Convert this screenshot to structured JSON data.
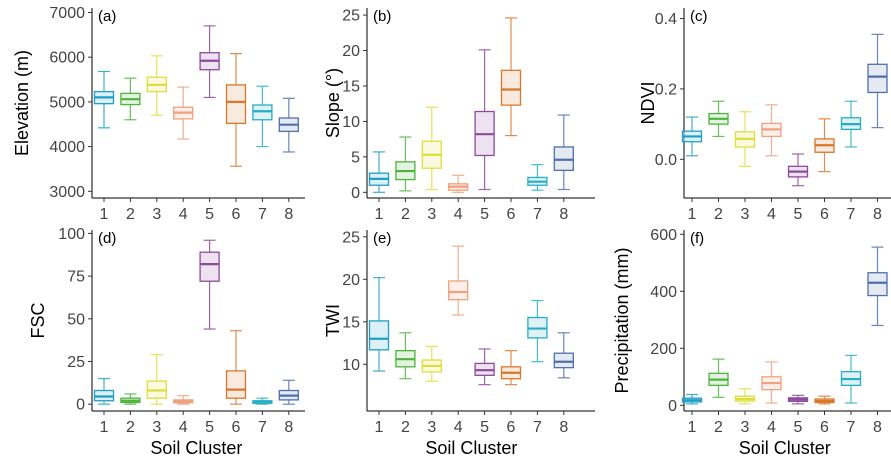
{
  "colors": [
    "#1f9ec9",
    "#4db33d",
    "#dede3b",
    "#f0a07c",
    "#8e4a9c",
    "#d9772b",
    "#26aec5",
    "#4f70ad"
  ],
  "chart_data": [
    {
      "type": "boxplot",
      "tag": "(a)",
      "xlabel": "",
      "ylabel": "Elevation (m)",
      "ylim": [
        2850,
        7100
      ],
      "yticks": [
        3000,
        4000,
        5000,
        6000,
        7000
      ],
      "categories": [
        "1",
        "2",
        "3",
        "4",
        "5",
        "6",
        "7",
        "8"
      ],
      "boxes": [
        {
          "min": 4420,
          "q1": 4960,
          "median": 5100,
          "q3": 5230,
          "max": 5680
        },
        {
          "min": 4600,
          "q1": 4940,
          "median": 5060,
          "q3": 5190,
          "max": 5530
        },
        {
          "min": 4700,
          "q1": 5230,
          "median": 5380,
          "q3": 5550,
          "max": 6030
        },
        {
          "min": 4170,
          "q1": 4620,
          "median": 4760,
          "q3": 4880,
          "max": 5330
        },
        {
          "min": 5100,
          "q1": 5720,
          "median": 5920,
          "q3": 6100,
          "max": 6700
        },
        {
          "min": 3560,
          "q1": 4520,
          "median": 5000,
          "q3": 5380,
          "max": 6080
        },
        {
          "min": 4000,
          "q1": 4600,
          "median": 4790,
          "q3": 4930,
          "max": 5350
        },
        {
          "min": 3880,
          "q1": 4340,
          "median": 4490,
          "q3": 4640,
          "max": 5080
        }
      ]
    },
    {
      "type": "boxplot",
      "tag": "(b)",
      "xlabel": "",
      "ylabel": "Slope (°)",
      "ylim": [
        -0.8,
        26
      ],
      "yticks": [
        0,
        5,
        10,
        15,
        20,
        25
      ],
      "categories": [
        "1",
        "2",
        "3",
        "4",
        "5",
        "6",
        "7",
        "8"
      ],
      "boxes": [
        {
          "min": 0,
          "q1": 1,
          "median": 1.9,
          "q3": 2.7,
          "max": 5.7
        },
        {
          "min": 0.2,
          "q1": 1.8,
          "median": 3,
          "q3": 4.3,
          "max": 7.8
        },
        {
          "min": 0.4,
          "q1": 3.4,
          "median": 5.3,
          "q3": 7.2,
          "max": 12
        },
        {
          "min": 0,
          "q1": 0.3,
          "median": 0.8,
          "q3": 1.2,
          "max": 2.4
        },
        {
          "min": 0.4,
          "q1": 5.2,
          "median": 8.2,
          "q3": 11.4,
          "max": 20.1
        },
        {
          "min": 8,
          "q1": 12.3,
          "median": 14.5,
          "q3": 17.2,
          "max": 24.6
        },
        {
          "min": 0.3,
          "q1": 1,
          "median": 1.5,
          "q3": 2.1,
          "max": 3.9
        },
        {
          "min": 0.4,
          "q1": 3.1,
          "median": 4.6,
          "q3": 6.4,
          "max": 10.9
        }
      ]
    },
    {
      "type": "boxplot",
      "tag": "(c)",
      "xlabel": "",
      "ylabel": "NDVI",
      "ylim": [
        -0.11,
        0.43
      ],
      "yticks": [
        0.0,
        0.2,
        0.4
      ],
      "yticklabels": [
        "0.0",
        "0.2",
        "0.4"
      ],
      "categories": [
        "1",
        "2",
        "3",
        "4",
        "5",
        "6",
        "7",
        "8"
      ],
      "boxes": [
        {
          "min": 0.01,
          "q1": 0.05,
          "median": 0.065,
          "q3": 0.08,
          "max": 0.12
        },
        {
          "min": 0.065,
          "q1": 0.1,
          "median": 0.115,
          "q3": 0.13,
          "max": 0.165
        },
        {
          "min": -0.02,
          "q1": 0.035,
          "median": 0.058,
          "q3": 0.078,
          "max": 0.135
        },
        {
          "min": 0.01,
          "q1": 0.065,
          "median": 0.085,
          "q3": 0.102,
          "max": 0.155
        },
        {
          "min": -0.075,
          "q1": -0.05,
          "median": -0.035,
          "q3": -0.02,
          "max": 0.015
        },
        {
          "min": -0.035,
          "q1": 0.02,
          "median": 0.04,
          "q3": 0.058,
          "max": 0.115
        },
        {
          "min": 0.035,
          "q1": 0.085,
          "median": 0.1,
          "q3": 0.118,
          "max": 0.165
        },
        {
          "min": 0.09,
          "q1": 0.19,
          "median": 0.235,
          "q3": 0.27,
          "max": 0.355
        }
      ]
    },
    {
      "type": "boxplot",
      "tag": "(d)",
      "xlabel": "Soil Cluster",
      "ylabel": "FSC",
      "ylim": [
        -4,
        102
      ],
      "yticks": [
        0,
        25,
        50,
        75,
        100
      ],
      "categories": [
        "1",
        "2",
        "3",
        "4",
        "5",
        "6",
        "7",
        "8"
      ],
      "boxes": [
        {
          "min": 0,
          "q1": 2,
          "median": 4.5,
          "q3": 8,
          "max": 15
        },
        {
          "min": 0,
          "q1": 1,
          "median": 2,
          "q3": 3.5,
          "max": 6
        },
        {
          "min": 0,
          "q1": 3.5,
          "median": 8,
          "q3": 13.5,
          "max": 29
        },
        {
          "min": 0,
          "q1": 0.8,
          "median": 1.5,
          "q3": 2.5,
          "max": 5
        },
        {
          "min": 44,
          "q1": 72,
          "median": 82,
          "q3": 89,
          "max": 96
        },
        {
          "min": 0,
          "q1": 3.5,
          "median": 8.5,
          "q3": 19.5,
          "max": 43
        },
        {
          "min": 0,
          "q1": 0.5,
          "median": 1.5,
          "q3": 2,
          "max": 3.5
        },
        {
          "min": 0,
          "q1": 2.5,
          "median": 5,
          "q3": 8,
          "max": 14
        }
      ]
    },
    {
      "type": "boxplot",
      "tag": "(e)",
      "xlabel": "Soil Cluster",
      "ylabel": "TWI",
      "ylim": [
        4.5,
        25.8
      ],
      "yticks": [
        10,
        15,
        20,
        25
      ],
      "categories": [
        "1",
        "2",
        "3",
        "4",
        "5",
        "6",
        "7",
        "8"
      ],
      "boxes": [
        {
          "min": 9.2,
          "q1": 11.7,
          "median": 13,
          "q3": 15.1,
          "max": 20.2
        },
        {
          "min": 8.3,
          "q1": 9.7,
          "median": 10.6,
          "q3": 11.6,
          "max": 13.7
        },
        {
          "min": 8,
          "q1": 9.1,
          "median": 9.8,
          "q3": 10.5,
          "max": 12.1
        },
        {
          "min": 15.8,
          "q1": 17.6,
          "median": 18.5,
          "q3": 19.8,
          "max": 23.9
        },
        {
          "min": 7.6,
          "q1": 8.7,
          "median": 9.3,
          "q3": 10.1,
          "max": 11.8
        },
        {
          "min": 7.6,
          "q1": 8.3,
          "median": 9,
          "q3": 9.7,
          "max": 11.6
        },
        {
          "min": 10.3,
          "q1": 13.1,
          "median": 14.2,
          "q3": 15.5,
          "max": 17.5
        },
        {
          "min": 8.4,
          "q1": 9.6,
          "median": 10.3,
          "q3": 11.3,
          "max": 13.7
        }
      ]
    },
    {
      "type": "boxplot",
      "tag": "(f)",
      "xlabel": "Soil Cluster",
      "ylabel": "Precipitation (mm)",
      "ylim": [
        -20,
        615
      ],
      "yticks": [
        0,
        200,
        400,
        600
      ],
      "categories": [
        "1",
        "2",
        "3",
        "4",
        "5",
        "6",
        "7",
        "8"
      ],
      "boxes": [
        {
          "min": 5,
          "q1": 12,
          "median": 18,
          "q3": 25,
          "max": 38
        },
        {
          "min": 28,
          "q1": 70,
          "median": 90,
          "q3": 112,
          "max": 162
        },
        {
          "min": 5,
          "q1": 15,
          "median": 22,
          "q3": 32,
          "max": 58
        },
        {
          "min": 8,
          "q1": 55,
          "median": 78,
          "q3": 100,
          "max": 152
        },
        {
          "min": 5,
          "q1": 14,
          "median": 20,
          "q3": 26,
          "max": 35
        },
        {
          "min": 5,
          "q1": 10,
          "median": 15,
          "q3": 22,
          "max": 32
        },
        {
          "min": 8,
          "q1": 70,
          "median": 92,
          "q3": 118,
          "max": 175
        },
        {
          "min": 280,
          "q1": 385,
          "median": 430,
          "q3": 465,
          "max": 555
        }
      ]
    }
  ]
}
